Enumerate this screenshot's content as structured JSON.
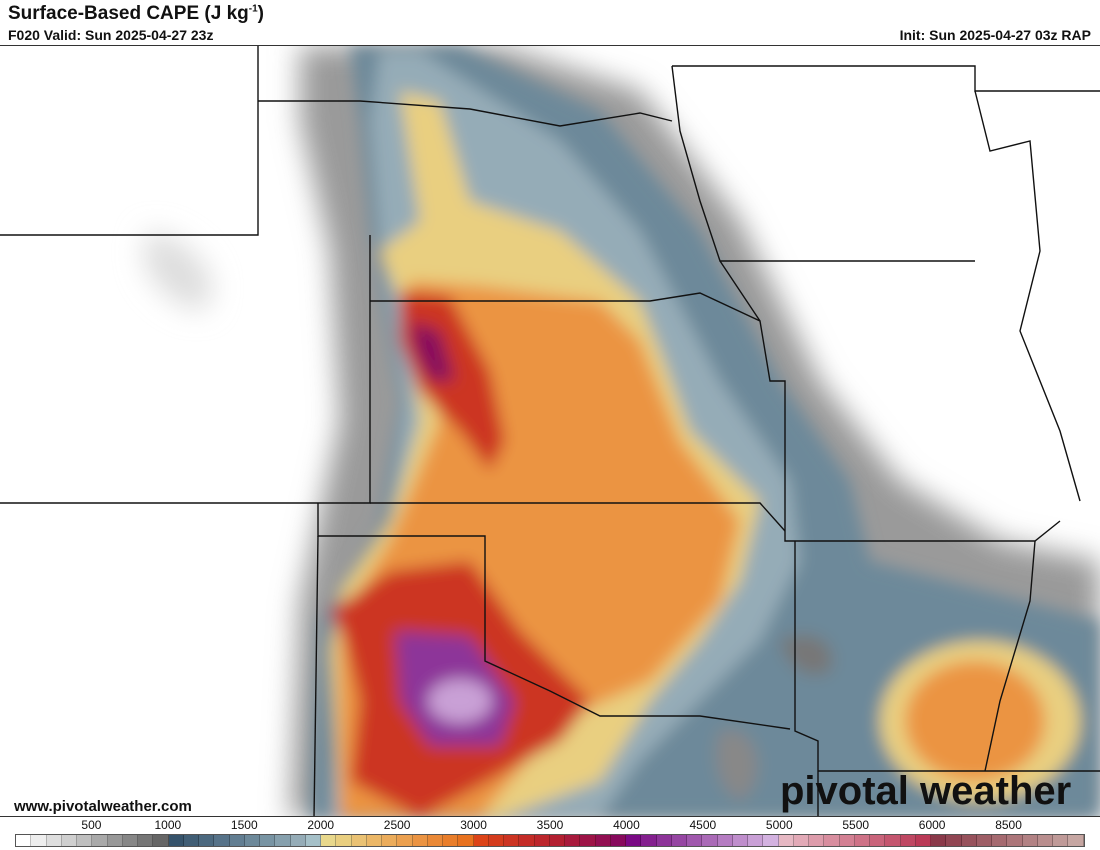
{
  "header": {
    "title": "Surface-Based CAPE (J kg",
    "title_sup": "-1",
    "title_close": ")",
    "valid": "F020 Valid: Sun 2025-04-27 23z",
    "init": "Init: Sun 2025-04-27 03z RAP"
  },
  "footer": {
    "website": "www.pivotalweather.com",
    "logo": "pivotal weather"
  },
  "colorbar": {
    "labels": [
      "500",
      "1000",
      "1500",
      "2000",
      "2500",
      "3000",
      "3500",
      "4000",
      "4500",
      "5000",
      "5500",
      "6000",
      "8500"
    ],
    "colors": [
      "#ffffff",
      "#eeeeee",
      "#dedede",
      "#cfcfcf",
      "#bfbfbf",
      "#a9a9a9",
      "#989898",
      "#878787",
      "#767676",
      "#666666",
      "#36536b",
      "#415e75",
      "#4c697f",
      "#577389",
      "#627e92",
      "#6d899a",
      "#7894a3",
      "#86a0ad",
      "#95acb7",
      "#a5c0c8",
      "#e8d88c",
      "#e9cf80",
      "#eac274",
      "#ebb767",
      "#ebac5b",
      "#eba04f",
      "#eb9443",
      "#ea8937",
      "#e97e2b",
      "#e8721f",
      "#dc4418",
      "#d43c1d",
      "#cc3422",
      "#c42c27",
      "#bc262c",
      "#b32031",
      "#a81a3c",
      "#9d1447",
      "#920f52",
      "#870a5d",
      "#7a0a85",
      "#84208f",
      "#8d3499",
      "#9646a3",
      "#a058ad",
      "#aa6ab7",
      "#b57cc2",
      "#bf8ecc",
      "#c9a0d6",
      "#d3b2e0",
      "#e6b8c3",
      "#e2aab7",
      "#dd9cab",
      "#d88e9f",
      "#d38093",
      "#ce7287",
      "#c9647b",
      "#c4566f",
      "#bf4863",
      "#ba3a57",
      "#8a3a4a",
      "#914653",
      "#97525c",
      "#9e5e66",
      "#a56a70",
      "#ac767a",
      "#b28284",
      "#b98e8e",
      "#bf9a98",
      "#c6a6a2"
    ]
  },
  "map_fields": {
    "variable": "Surface-Based CAPE",
    "colors": {
      "gray": "#9a9a9a",
      "blue": "#6d899a",
      "yellow": "#e9cf80",
      "orange": "#eb9443",
      "red": "#cc3422",
      "crimson": "#9d1447",
      "purple": "#8d3499",
      "lilac": "#c9a0d6"
    }
  }
}
